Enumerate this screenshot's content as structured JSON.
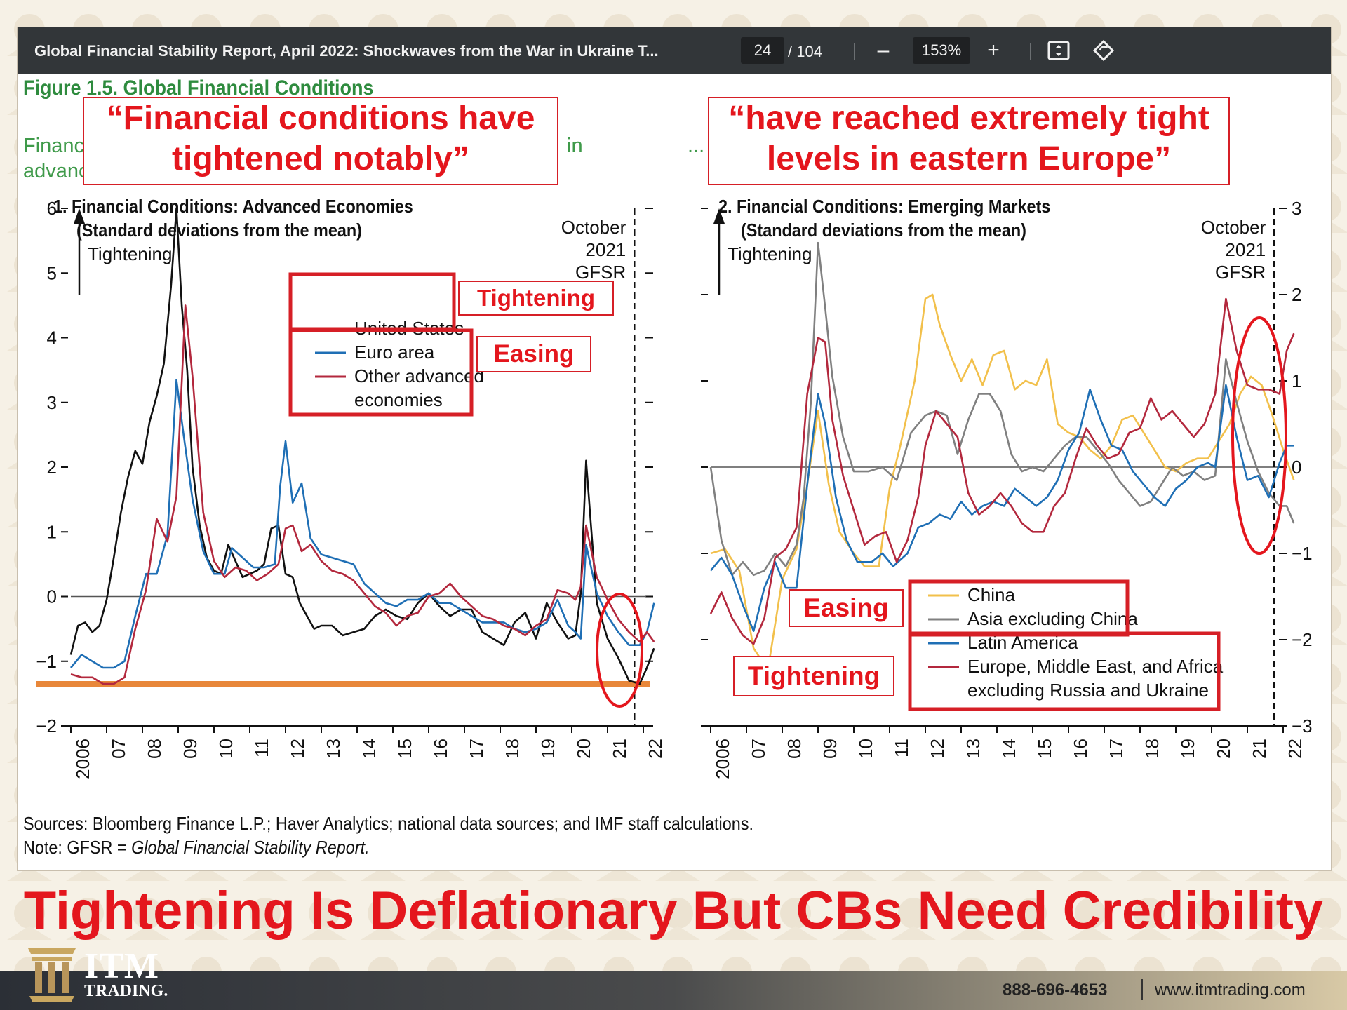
{
  "toolbar": {
    "doc_title": "Global Financial Stability Report, April 2022: Shockwaves from the War in Ukraine T...",
    "page_current": "24",
    "page_total": "/ 104",
    "zoom": "153%",
    "zoom_out_label": "–",
    "zoom_in_label": "+",
    "fit_icon": "fit-to-page-icon",
    "rotate_icon": "rotate-icon"
  },
  "figure": {
    "title": "Figure 1.5. Global Financial Conditions",
    "subtitle_left_1": "Financ",
    "subtitle_left_2": "advanc",
    "subtitle_mid": "in",
    "subtitle_right": "...",
    "sources": "Sources: Bloomberg Finance L.P.; Haver Analytics; national data sources; and IMF staff calculations.",
    "note_prefix": "Note: GFSR = ",
    "note_italic": "Global Financial Stability Report."
  },
  "callouts": {
    "left": "“Financial conditions have tightened notably”",
    "right": "“have reached extremely tight levels in eastern Europe”",
    "left_tightening": "Tightening",
    "left_easing": "Easing",
    "right_easing": "Easing",
    "right_tightening": "Tightening"
  },
  "headline": "Tightening Is Deflationary But CBs Need Credibility",
  "footer": {
    "brand": "ITM",
    "brand_sub": "TRADING.",
    "phone": "888-696-4653",
    "url": "www.itmtrading.com"
  },
  "colors": {
    "us": "#111111",
    "euro": "#1f6fb5",
    "other_adv": "#b3283d",
    "china": "#f2c04b",
    "asia_ex_china": "#808080",
    "latam": "#1f6fb5",
    "emea": "#b3283d",
    "accent_red": "#e4161d",
    "orange_line": "#e8873a"
  },
  "chart_data": [
    {
      "type": "line",
      "title": "1. Financial Conditions: Advanced Economies",
      "subtitle": "(Standard deviations from the mean)",
      "y_label_annotation": "Tightening",
      "vline_label": [
        "October",
        "2021",
        "GFSR"
      ],
      "ylim": [
        -2,
        6
      ],
      "y_ticks": [
        "6",
        "5",
        "4",
        "3",
        "2",
        "1",
        "0",
        "−1",
        "−2"
      ],
      "x_ticks": [
        "2006",
        "07",
        "08",
        "09",
        "10",
        "11",
        "12",
        "13",
        "14",
        "15",
        "16",
        "17",
        "18",
        "19",
        "20",
        "21",
        "22"
      ],
      "vline_x": 2021.75,
      "hline_orange_y": -1.35,
      "series": [
        {
          "name": "United States",
          "x": [
            2006.0,
            2006.2,
            2006.4,
            2006.6,
            2006.8,
            2007.0,
            2007.2,
            2007.4,
            2007.6,
            2007.8,
            2008.0,
            2008.2,
            2008.4,
            2008.6,
            2008.8,
            2008.95,
            2009.1,
            2009.25,
            2009.4,
            2009.6,
            2009.8,
            2010.0,
            2010.2,
            2010.4,
            2010.6,
            2010.8,
            2011.0,
            2011.2,
            2011.4,
            2011.6,
            2011.8,
            2012.0,
            2012.2,
            2012.4,
            2012.6,
            2012.8,
            2013.0,
            2013.3,
            2013.6,
            2013.9,
            2014.2,
            2014.5,
            2014.8,
            2015.1,
            2015.4,
            2015.7,
            2016.0,
            2016.3,
            2016.6,
            2016.9,
            2017.2,
            2017.5,
            2017.8,
            2018.1,
            2018.4,
            2018.7,
            2019.0,
            2019.3,
            2019.6,
            2019.9,
            2020.1,
            2020.25,
            2020.4,
            2020.7,
            2021.0,
            2021.3,
            2021.6,
            2021.9,
            2022.1,
            2022.3
          ],
          "values": [
            -0.9,
            -0.45,
            -0.4,
            -0.55,
            -0.45,
            -0.05,
            0.6,
            1.3,
            1.85,
            2.25,
            2.05,
            2.7,
            3.1,
            3.6,
            4.8,
            6.0,
            4.5,
            3.5,
            2.0,
            1.1,
            0.6,
            0.4,
            0.35,
            0.8,
            0.55,
            0.3,
            0.35,
            0.4,
            0.5,
            1.05,
            1.1,
            0.35,
            0.3,
            -0.1,
            -0.3,
            -0.5,
            -0.45,
            -0.45,
            -0.6,
            -0.55,
            -0.5,
            -0.3,
            -0.2,
            -0.3,
            -0.35,
            -0.1,
            0.05,
            -0.15,
            -0.3,
            -0.2,
            -0.2,
            -0.55,
            -0.65,
            -0.75,
            -0.4,
            -0.25,
            -0.65,
            -0.1,
            -0.4,
            -0.65,
            -0.6,
            0.05,
            2.1,
            -0.1,
            -0.65,
            -0.95,
            -1.3,
            -1.35,
            -1.1,
            -0.8
          ]
        },
        {
          "name": "Euro area",
          "x": [
            2006.0,
            2006.3,
            2006.6,
            2006.9,
            2007.2,
            2007.5,
            2007.8,
            2008.1,
            2008.4,
            2008.7,
            2008.95,
            2009.15,
            2009.4,
            2009.7,
            2010.0,
            2010.3,
            2010.5,
            2010.8,
            2011.1,
            2011.4,
            2011.7,
            2011.85,
            2012.0,
            2012.2,
            2012.45,
            2012.7,
            2013.0,
            2013.3,
            2013.6,
            2013.9,
            2014.2,
            2014.5,
            2014.8,
            2015.1,
            2015.4,
            2015.7,
            2016.0,
            2016.3,
            2016.6,
            2016.9,
            2017.2,
            2017.5,
            2017.8,
            2018.1,
            2018.4,
            2018.7,
            2019.0,
            2019.3,
            2019.6,
            2019.9,
            2020.1,
            2020.25,
            2020.4,
            2020.7,
            2021.0,
            2021.3,
            2021.6,
            2021.9,
            2022.1,
            2022.3
          ],
          "values": [
            -1.1,
            -0.9,
            -1.0,
            -1.1,
            -1.1,
            -1.0,
            -0.3,
            0.35,
            0.35,
            0.95,
            3.35,
            2.5,
            1.5,
            0.7,
            0.35,
            0.35,
            0.75,
            0.6,
            0.45,
            0.45,
            0.5,
            1.7,
            2.4,
            1.45,
            1.75,
            0.9,
            0.65,
            0.6,
            0.55,
            0.5,
            0.2,
            0.05,
            -0.1,
            -0.15,
            -0.05,
            -0.05,
            0.05,
            -0.1,
            -0.1,
            -0.2,
            -0.3,
            -0.4,
            -0.4,
            -0.4,
            -0.5,
            -0.55,
            -0.5,
            -0.4,
            -0.05,
            -0.45,
            -0.55,
            -0.65,
            0.8,
            0.05,
            -0.3,
            -0.55,
            -0.75,
            -0.75,
            -0.55,
            -0.1
          ]
        },
        {
          "name": "Other advanced economies",
          "x": [
            2006.0,
            2006.3,
            2006.6,
            2006.9,
            2007.2,
            2007.5,
            2007.8,
            2008.1,
            2008.4,
            2008.7,
            2008.95,
            2009.2,
            2009.4,
            2009.7,
            2010.0,
            2010.3,
            2010.6,
            2010.9,
            2011.2,
            2011.5,
            2011.8,
            2012.0,
            2012.2,
            2012.45,
            2012.7,
            2013.0,
            2013.3,
            2013.6,
            2013.9,
            2014.2,
            2014.5,
            2014.8,
            2015.1,
            2015.4,
            2015.7,
            2016.0,
            2016.3,
            2016.6,
            2016.9,
            2017.2,
            2017.5,
            2017.8,
            2018.1,
            2018.4,
            2018.7,
            2019.0,
            2019.3,
            2019.6,
            2019.9,
            2020.1,
            2020.25,
            2020.4,
            2020.7,
            2021.0,
            2021.3,
            2021.6,
            2021.9,
            2022.1,
            2022.3
          ],
          "values": [
            -1.2,
            -1.25,
            -1.25,
            -1.35,
            -1.35,
            -1.25,
            -0.5,
            0.1,
            1.2,
            0.85,
            1.55,
            4.5,
            3.4,
            1.3,
            0.55,
            0.3,
            0.45,
            0.4,
            0.25,
            0.35,
            0.5,
            1.05,
            1.1,
            0.7,
            0.8,
            0.55,
            0.4,
            0.35,
            0.25,
            0.05,
            -0.15,
            -0.25,
            -0.45,
            -0.3,
            -0.25,
            0.0,
            0.05,
            0.2,
            0.0,
            -0.15,
            -0.3,
            -0.35,
            -0.45,
            -0.5,
            -0.6,
            -0.45,
            -0.35,
            0.1,
            0.05,
            -0.05,
            0.15,
            1.1,
            0.3,
            -0.05,
            -0.35,
            -0.55,
            -0.7,
            -0.55,
            -0.7
          ]
        }
      ]
    },
    {
      "type": "line",
      "title": "2. Financial Conditions: Emerging Markets",
      "subtitle": "(Standard deviations from the mean)",
      "y_label_annotation": "Tightening",
      "vline_label": [
        "October",
        "2021",
        "GFSR"
      ],
      "ylim": [
        -3,
        3
      ],
      "y_ticks": [
        "3",
        "2",
        "1",
        "0",
        "−1",
        "−2",
        "−3"
      ],
      "x_ticks": [
        "2006",
        "07",
        "08",
        "09",
        "10",
        "11",
        "12",
        "13",
        "14",
        "15",
        "16",
        "17",
        "18",
        "19",
        "20",
        "21",
        "22"
      ],
      "vline_x": 2021.75,
      "series": [
        {
          "name": "China",
          "x": [
            2006.0,
            2006.4,
            2006.8,
            2007.2,
            2007.6,
            2008.0,
            2008.4,
            2008.7,
            2009.0,
            2009.3,
            2009.6,
            2010.0,
            2010.3,
            2010.7,
            2011.0,
            2011.3,
            2011.7,
            2012.0,
            2012.2,
            2012.4,
            2012.7,
            2013.0,
            2013.3,
            2013.6,
            2013.9,
            2014.2,
            2014.5,
            2014.8,
            2015.1,
            2015.4,
            2015.7,
            2016.0,
            2016.3,
            2016.6,
            2016.9,
            2017.2,
            2017.5,
            2017.8,
            2018.1,
            2018.4,
            2018.7,
            2019.0,
            2019.3,
            2019.6,
            2019.9,
            2020.2,
            2020.5,
            2020.8,
            2021.1,
            2021.4,
            2021.7,
            2022.0,
            2022.3
          ],
          "values": [
            -1.0,
            -0.95,
            -1.2,
            -2.1,
            -2.35,
            -1.3,
            -0.95,
            -0.2,
            0.65,
            -0.2,
            -0.75,
            -1.0,
            -1.15,
            -1.15,
            -0.25,
            0.25,
            1.0,
            1.95,
            2.0,
            1.65,
            1.3,
            1.0,
            1.25,
            0.95,
            1.3,
            1.35,
            0.9,
            1.0,
            0.95,
            1.25,
            0.5,
            0.4,
            0.35,
            0.2,
            0.1,
            0.25,
            0.55,
            0.6,
            0.4,
            0.2,
            0.0,
            -0.05,
            0.05,
            0.1,
            0.1,
            0.3,
            0.5,
            0.85,
            1.05,
            0.95,
            0.6,
            0.2,
            -0.15
          ]
        },
        {
          "name": "Asia excluding China",
          "x": [
            2006.0,
            2006.3,
            2006.6,
            2006.9,
            2007.2,
            2007.5,
            2007.8,
            2008.1,
            2008.4,
            2008.6,
            2008.8,
            2009.0,
            2009.2,
            2009.4,
            2009.7,
            2010.0,
            2010.4,
            2010.8,
            2011.2,
            2011.6,
            2012.0,
            2012.3,
            2012.6,
            2012.9,
            2013.2,
            2013.5,
            2013.8,
            2014.1,
            2014.4,
            2014.7,
            2015.0,
            2015.3,
            2015.6,
            2015.9,
            2016.2,
            2016.5,
            2016.8,
            2017.1,
            2017.4,
            2017.7,
            2018.0,
            2018.3,
            2018.6,
            2018.9,
            2019.2,
            2019.5,
            2019.8,
            2020.1,
            2020.4,
            2020.7,
            2021.0,
            2021.3,
            2021.6,
            2021.9,
            2022.1,
            2022.3
          ],
          "values": [
            0.0,
            -0.85,
            -1.25,
            -1.1,
            -1.25,
            -1.2,
            -1.0,
            -1.15,
            -0.9,
            -0.35,
            0.75,
            2.6,
            1.85,
            1.05,
            0.35,
            -0.05,
            -0.05,
            0.0,
            -0.15,
            0.4,
            0.6,
            0.65,
            0.6,
            0.15,
            0.55,
            0.85,
            0.85,
            0.65,
            0.15,
            -0.05,
            0.0,
            -0.05,
            0.1,
            0.25,
            0.35,
            0.35,
            0.2,
            0.05,
            -0.15,
            -0.3,
            -0.45,
            -0.4,
            -0.2,
            0.0,
            -0.1,
            -0.05,
            -0.15,
            -0.1,
            1.25,
            0.75,
            0.3,
            -0.05,
            -0.3,
            -0.45,
            -0.45,
            -0.65
          ]
        },
        {
          "name": "Latin America",
          "x": [
            2006.0,
            2006.3,
            2006.6,
            2006.9,
            2007.2,
            2007.5,
            2007.8,
            2008.1,
            2008.4,
            2008.7,
            2009.0,
            2009.2,
            2009.5,
            2009.8,
            2010.1,
            2010.5,
            2010.8,
            2011.1,
            2011.5,
            2011.8,
            2012.1,
            2012.4,
            2012.7,
            2013.0,
            2013.3,
            2013.6,
            2013.9,
            2014.2,
            2014.5,
            2014.8,
            2015.1,
            2015.4,
            2015.7,
            2016.0,
            2016.3,
            2016.6,
            2016.9,
            2017.2,
            2017.5,
            2017.8,
            2018.1,
            2018.4,
            2018.7,
            2019.0,
            2019.3,
            2019.6,
            2019.9,
            2020.1,
            2020.4,
            2020.7,
            2021.0,
            2021.3,
            2021.6,
            2021.9,
            2022.1,
            2022.3
          ],
          "values": [
            -1.2,
            -1.05,
            -1.25,
            -1.6,
            -1.9,
            -1.4,
            -1.1,
            -1.4,
            -1.4,
            -0.2,
            0.85,
            0.5,
            -0.35,
            -0.85,
            -1.1,
            -1.1,
            -1.0,
            -1.15,
            -1.0,
            -0.7,
            -0.65,
            -0.55,
            -0.6,
            -0.4,
            -0.55,
            -0.45,
            -0.4,
            -0.45,
            -0.25,
            -0.35,
            -0.45,
            -0.35,
            -0.15,
            0.2,
            0.4,
            0.9,
            0.55,
            0.25,
            0.2,
            -0.05,
            -0.2,
            -0.35,
            -0.45,
            -0.25,
            -0.15,
            0.0,
            0.05,
            0.0,
            0.95,
            0.35,
            -0.15,
            -0.1,
            -0.35,
            0.05,
            0.25,
            0.25
          ]
        },
        {
          "name": "Europe, Middle East, and Africa excluding Russia and Ukraine",
          "x": [
            2006.0,
            2006.3,
            2006.6,
            2006.9,
            2007.2,
            2007.5,
            2007.8,
            2008.1,
            2008.4,
            2008.7,
            2009.0,
            2009.2,
            2009.4,
            2009.7,
            2010.0,
            2010.3,
            2010.6,
            2010.9,
            2011.2,
            2011.5,
            2011.8,
            2012.0,
            2012.3,
            2012.6,
            2012.9,
            2013.2,
            2013.5,
            2013.8,
            2014.1,
            2014.4,
            2014.7,
            2015.0,
            2015.3,
            2015.6,
            2015.9,
            2016.2,
            2016.5,
            2016.8,
            2017.1,
            2017.4,
            2017.7,
            2018.0,
            2018.3,
            2018.6,
            2018.9,
            2019.2,
            2019.5,
            2019.8,
            2020.1,
            2020.4,
            2020.7,
            2021.0,
            2021.3,
            2021.6,
            2021.9,
            2022.1,
            2022.3
          ],
          "values": [
            -1.7,
            -1.45,
            -1.75,
            -1.95,
            -2.05,
            -1.75,
            -1.05,
            -0.95,
            -0.7,
            0.85,
            1.5,
            1.45,
            0.55,
            -0.1,
            -0.5,
            -0.9,
            -0.8,
            -0.75,
            -1.1,
            -0.85,
            -0.35,
            0.25,
            0.65,
            0.5,
            0.35,
            -0.3,
            -0.55,
            -0.45,
            -0.3,
            -0.45,
            -0.65,
            -0.75,
            -0.75,
            -0.45,
            -0.3,
            0.1,
            0.45,
            0.25,
            0.1,
            0.15,
            0.4,
            0.45,
            0.8,
            0.55,
            0.65,
            0.5,
            0.35,
            0.5,
            0.85,
            1.95,
            1.35,
            0.95,
            0.9,
            0.9,
            0.85,
            1.35,
            1.55
          ]
        }
      ]
    }
  ]
}
